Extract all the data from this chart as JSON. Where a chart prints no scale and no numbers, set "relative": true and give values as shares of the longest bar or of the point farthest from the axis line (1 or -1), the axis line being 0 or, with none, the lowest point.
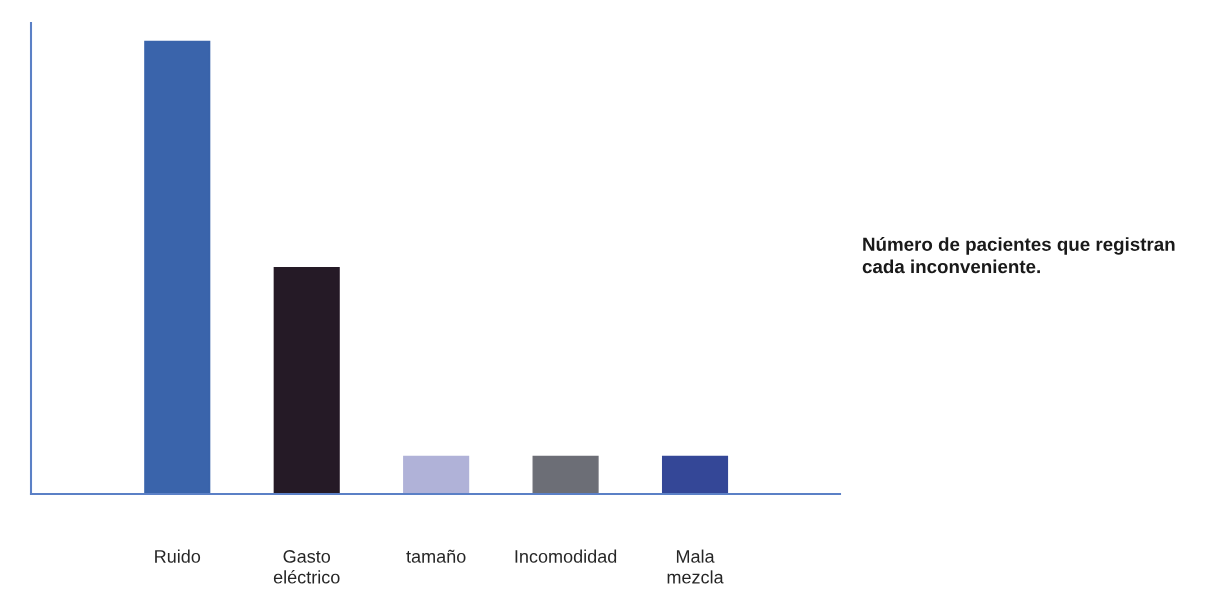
{
  "chart_data": {
    "type": "bar",
    "title": "Número de pacientes que registran cada inconveniente.",
    "categories": [
      "Ruido",
      "Gasto eléctrico",
      "tamaño",
      "Incomodidad",
      "Mala mezcla"
    ],
    "values": [
      1,
      0.5,
      0.083,
      0.083,
      0.083
    ],
    "colors": [
      "#3a64ab",
      "#251a26",
      "#b0b2d8",
      "#6c6e76",
      "#344797"
    ],
    "relative": true,
    "grid": false
  }
}
